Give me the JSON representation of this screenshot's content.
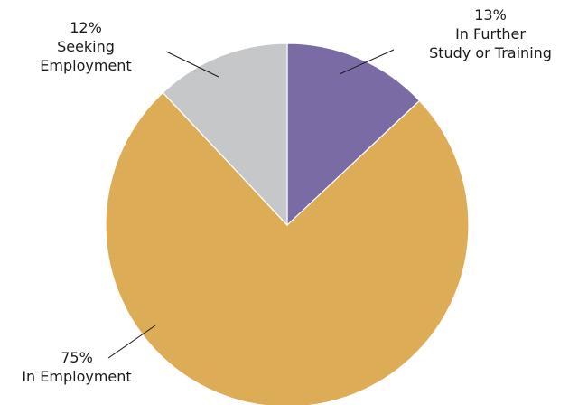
{
  "chart_data": {
    "type": "pie",
    "title": "",
    "slices": [
      {
        "label": "In Further Study or Training",
        "value": 13,
        "display": "13%",
        "label_lines": [
          "In Further",
          "Study or Training"
        ],
        "color": "#7b6ba4"
      },
      {
        "label": "Seeking Employment",
        "value": 12,
        "display": "12%",
        "label_lines": [
          "Seeking",
          "Employment"
        ],
        "color": "#c6c7c9"
      },
      {
        "label": "In Employment",
        "value": 75,
        "display": "75%",
        "label_lines": [
          "In Employment"
        ],
        "color": "#ddac57"
      }
    ],
    "start_angle": "12 o'clock",
    "direction": "clockwise",
    "legend": "none (callout labels)"
  }
}
